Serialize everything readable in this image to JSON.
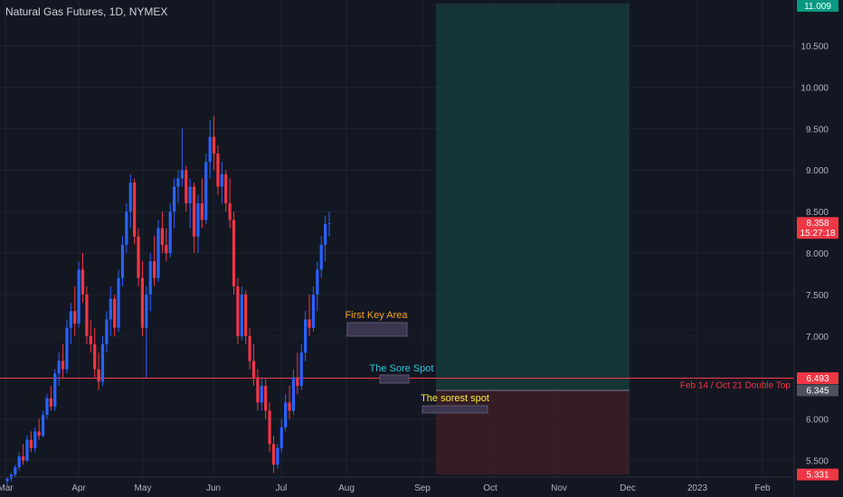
{
  "header": {
    "symbol_title": "Natural Gas Futures, 1D, NYMEX"
  },
  "colors": {
    "background": "#131722",
    "grid": "#1f2330",
    "up": "#2962ff",
    "down": "#f23645",
    "text": "#b2b5be",
    "level_line": "#f23645",
    "target_zone": "#163a3a",
    "stop_zone": "#3a1e26",
    "annotation_first_key": "#f7a21b",
    "annotation_sore_spot": "#26c6da",
    "annotation_sorest": "#ffeb3b"
  },
  "chart_data": {
    "type": "candlestick",
    "y_axis": {
      "range": [
        5.3,
        11.05
      ],
      "ticks": [
        "11.009",
        "10.500",
        "10.000",
        "9.500",
        "9.000",
        "8.500",
        "8.000",
        "7.500",
        "7.000",
        "6.500",
        "6.000",
        "5.500"
      ]
    },
    "x_axis": {
      "ticks": [
        "Mar",
        "Apr",
        "May",
        "Jun",
        "Jul",
        "Aug",
        "Sep",
        "Oct",
        "Nov",
        "Dec",
        "2023",
        "Feb"
      ]
    },
    "price_badges": [
      {
        "value": "11.009",
        "color": "#089981"
      },
      {
        "value": "8.358",
        "sub": "15:27:18",
        "color": "#f23645"
      },
      {
        "value": "6.493",
        "color": "#f23645"
      },
      {
        "value": "6.345",
        "color": "#4c525e"
      },
      {
        "value": "5.331",
        "color": "#f23645"
      }
    ],
    "horizontal_level": {
      "value": 6.493,
      "label": "Feb 14 / Oct 21 Double Top"
    },
    "position_tool": {
      "entry": 6.345,
      "target": 11.009,
      "stop": 5.331
    },
    "annotations": [
      {
        "text": "First Key Area",
        "level": 7.0
      },
      {
        "text": "The Sore Spot",
        "level": 6.37
      },
      {
        "text": "The sorest spot",
        "level": 6.0
      }
    ],
    "candles": [
      [
        5.25,
        5.3,
        5.2,
        5.28
      ],
      [
        5.28,
        5.35,
        5.25,
        5.33
      ],
      [
        5.33,
        5.45,
        5.3,
        5.42
      ],
      [
        5.42,
        5.6,
        5.38,
        5.55
      ],
      [
        5.55,
        5.7,
        5.45,
        5.5
      ],
      [
        5.5,
        5.8,
        5.48,
        5.75
      ],
      [
        5.75,
        5.85,
        5.6,
        5.65
      ],
      [
        5.65,
        5.9,
        5.6,
        5.85
      ],
      [
        5.85,
        6.0,
        5.75,
        5.8
      ],
      [
        5.8,
        6.1,
        5.78,
        6.05
      ],
      [
        6.05,
        6.3,
        6.0,
        6.25
      ],
      [
        6.25,
        6.4,
        6.1,
        6.15
      ],
      [
        6.15,
        6.6,
        6.1,
        6.55
      ],
      [
        6.55,
        6.8,
        6.4,
        6.7
      ],
      [
        6.7,
        6.9,
        6.5,
        6.6
      ],
      [
        6.6,
        7.2,
        6.55,
        7.1
      ],
      [
        7.1,
        7.4,
        6.9,
        7.3
      ],
      [
        7.3,
        7.6,
        7.0,
        7.15
      ],
      [
        7.15,
        7.9,
        7.1,
        7.8
      ],
      [
        7.8,
        8.0,
        7.4,
        7.5
      ],
      [
        7.5,
        7.6,
        6.9,
        7.0
      ],
      [
        7.0,
        7.2,
        6.8,
        6.9
      ],
      [
        6.9,
        7.1,
        6.5,
        6.6
      ],
      [
        6.6,
        6.8,
        6.35,
        6.45
      ],
      [
        6.45,
        7.0,
        6.4,
        6.9
      ],
      [
        6.9,
        7.3,
        6.8,
        7.2
      ],
      [
        7.2,
        7.6,
        7.0,
        7.45
      ],
      [
        7.45,
        7.5,
        7.0,
        7.1
      ],
      [
        7.1,
        7.8,
        7.05,
        7.7
      ],
      [
        7.7,
        8.2,
        7.6,
        8.1
      ],
      [
        8.1,
        8.6,
        8.0,
        8.5
      ],
      [
        8.5,
        8.95,
        8.3,
        8.85
      ],
      [
        8.85,
        8.9,
        8.1,
        8.2
      ],
      [
        8.2,
        8.3,
        7.6,
        7.7
      ],
      [
        7.7,
        7.9,
        7.0,
        7.1
      ],
      [
        7.1,
        7.6,
        6.5,
        7.5
      ],
      [
        7.5,
        8.0,
        7.3,
        7.9
      ],
      [
        7.9,
        8.2,
        7.6,
        7.7
      ],
      [
        7.7,
        8.4,
        7.65,
        8.3
      ],
      [
        8.3,
        8.5,
        8.0,
        8.1
      ],
      [
        8.1,
        8.3,
        7.9,
        8.0
      ],
      [
        8.0,
        8.6,
        7.95,
        8.5
      ],
      [
        8.5,
        8.9,
        8.3,
        8.8
      ],
      [
        8.8,
        9.0,
        8.6,
        8.9
      ],
      [
        8.9,
        9.5,
        8.8,
        9.0
      ],
      [
        9.0,
        9.05,
        8.5,
        8.6
      ],
      [
        8.6,
        8.9,
        8.3,
        8.8
      ],
      [
        8.8,
        8.85,
        8.0,
        8.2
      ],
      [
        8.2,
        8.7,
        8.0,
        8.6
      ],
      [
        8.6,
        8.9,
        8.3,
        8.4
      ],
      [
        8.4,
        9.2,
        8.35,
        9.1
      ],
      [
        9.1,
        9.6,
        8.9,
        9.4
      ],
      [
        9.4,
        9.65,
        9.0,
        9.2
      ],
      [
        9.2,
        9.3,
        8.7,
        8.8
      ],
      [
        8.8,
        9.1,
        8.6,
        8.95
      ],
      [
        8.95,
        9.0,
        8.5,
        8.6
      ],
      [
        8.6,
        8.9,
        8.3,
        8.4
      ],
      [
        8.4,
        8.5,
        7.5,
        7.6
      ],
      [
        7.6,
        7.7,
        6.9,
        7.0
      ],
      [
        7.0,
        7.6,
        6.95,
        7.5
      ],
      [
        7.5,
        7.55,
        6.9,
        7.0
      ],
      [
        7.0,
        7.1,
        6.6,
        6.7
      ],
      [
        6.7,
        6.9,
        6.4,
        6.5
      ],
      [
        6.5,
        6.6,
        6.1,
        6.2
      ],
      [
        6.2,
        6.5,
        6.1,
        6.4
      ],
      [
        6.4,
        6.5,
        6.0,
        6.1
      ],
      [
        6.1,
        6.2,
        5.6,
        5.7
      ],
      [
        5.7,
        5.8,
        5.35,
        5.45
      ],
      [
        5.45,
        5.7,
        5.4,
        5.65
      ],
      [
        5.65,
        6.0,
        5.6,
        5.9
      ],
      [
        5.9,
        6.3,
        5.85,
        6.2
      ],
      [
        6.2,
        6.4,
        6.0,
        6.1
      ],
      [
        6.1,
        6.6,
        6.05,
        6.5
      ],
      [
        6.5,
        6.8,
        6.3,
        6.4
      ],
      [
        6.4,
        6.9,
        6.35,
        6.8
      ],
      [
        6.8,
        7.3,
        6.7,
        7.2
      ],
      [
        7.2,
        7.5,
        7.0,
        7.1
      ],
      [
        7.1,
        7.6,
        7.05,
        7.5
      ],
      [
        7.5,
        7.9,
        7.3,
        7.8
      ],
      [
        7.8,
        8.2,
        7.7,
        8.1
      ],
      [
        8.1,
        8.45,
        7.9,
        8.35
      ],
      [
        8.35,
        8.5,
        8.2,
        8.358
      ]
    ]
  }
}
